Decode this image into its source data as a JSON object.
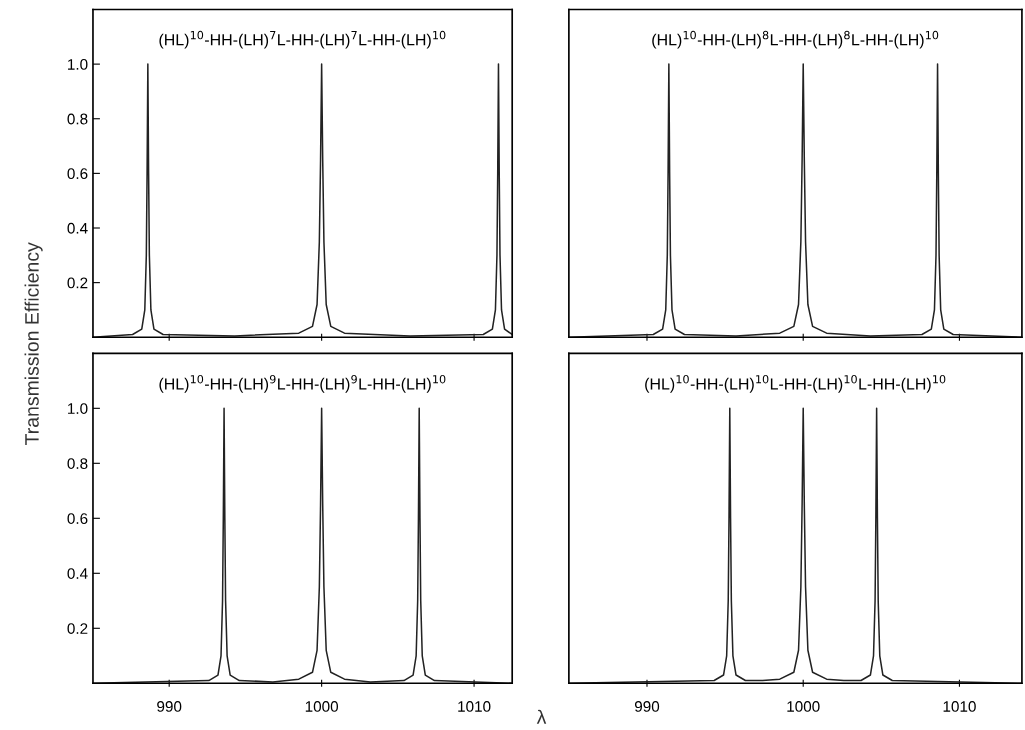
{
  "chart_data": [
    {
      "type": "line",
      "title": "(HL)$^{10}$-HH-(LH)$^{7}$L-HH-(LH)$^{7}$L-HH-(LH)$^{10}$",
      "ylabel": "Transmission Efficiency",
      "xlim": [
        985,
        1012.5
      ],
      "ylim": [
        0,
        1.2
      ],
      "xticks": [
        990,
        1000,
        1010
      ],
      "yticks": [
        0.2,
        0.4,
        0.6,
        0.8,
        {
          "value": 1.0,
          "label": "1.0"
        }
      ],
      "tick_labels": "y",
      "series": [
        {
          "color": "#222222",
          "x": [
            985,
            987.6,
            988.2,
            988.4,
            988.5,
            988.55,
            988.6,
            988.65,
            988.7,
            988.8,
            989.0,
            989.6,
            994.3,
            998.5,
            999.4,
            999.7,
            999.85,
            999.93,
            1000,
            1000.07,
            1000.15,
            1000.3,
            1000.6,
            1001.5,
            1005.8,
            1010.6,
            1011.2,
            1011.4,
            1011.5,
            1011.55,
            1011.6,
            1011.65,
            1011.7,
            1011.8,
            1012.0,
            1012.5
          ],
          "values": [
            0,
            0.01,
            0.03,
            0.1,
            0.3,
            0.6,
            1.0,
            0.6,
            0.3,
            0.1,
            0.03,
            0.01,
            0.005,
            0.015,
            0.04,
            0.12,
            0.35,
            0.65,
            1.0,
            0.65,
            0.35,
            0.12,
            0.04,
            0.015,
            0.005,
            0.01,
            0.03,
            0.1,
            0.3,
            0.6,
            1.0,
            0.6,
            0.3,
            0.1,
            0.03,
            0.01
          ]
        }
      ]
    },
    {
      "type": "line",
      "title": "(HL)$^{10}$-HH-(LH)$^{8}$L-HH-(LH)$^{8}$L-HH-(LH)$^{10}$",
      "xlim": [
        985,
        1014
      ],
      "ylim": [
        0,
        1.2
      ],
      "xticks": [
        990,
        1000,
        1010
      ],
      "tick_labels": false,
      "series": [
        {
          "color": "#222222",
          "x": [
            985,
            990.4,
            991.0,
            991.2,
            991.3,
            991.35,
            991.4,
            991.45,
            991.5,
            991.6,
            991.8,
            992.4,
            995.7,
            998.5,
            999.4,
            999.7,
            999.85,
            999.93,
            1000,
            1000.07,
            1000.15,
            1000.3,
            1000.6,
            1001.5,
            1004.3,
            1007.6,
            1008.2,
            1008.4,
            1008.5,
            1008.55,
            1008.6,
            1008.65,
            1008.7,
            1008.8,
            1009.0,
            1009.6,
            1014
          ],
          "values": [
            0,
            0.01,
            0.03,
            0.1,
            0.3,
            0.6,
            1.0,
            0.6,
            0.3,
            0.1,
            0.03,
            0.01,
            0.005,
            0.015,
            0.04,
            0.12,
            0.35,
            0.65,
            1.0,
            0.65,
            0.35,
            0.12,
            0.04,
            0.015,
            0.005,
            0.01,
            0.03,
            0.1,
            0.3,
            0.6,
            1.0,
            0.6,
            0.3,
            0.1,
            0.03,
            0.01,
            0
          ]
        }
      ]
    },
    {
      "type": "line",
      "title": "(HL)$^{10}$-HH-(LH)$^{9}$L-HH-(LH)$^{9}$L-HH-(LH)$^{10}$",
      "xlabel": "λ",
      "xlim": [
        985,
        1012.5
      ],
      "ylim": [
        0,
        1.2
      ],
      "xticks": [
        990,
        1000,
        1010
      ],
      "yticks": [
        0.2,
        0.4,
        0.6,
        0.8,
        {
          "value": 1.0,
          "label": "1.0"
        }
      ],
      "series": [
        {
          "color": "#222222",
          "x": [
            985,
            992.6,
            993.2,
            993.4,
            993.5,
            993.55,
            993.6,
            993.65,
            993.7,
            993.8,
            994.0,
            994.6,
            996.8,
            998.5,
            999.4,
            999.7,
            999.85,
            999.93,
            1000,
            1000.07,
            1000.15,
            1000.3,
            1000.6,
            1001.5,
            1003.2,
            1005.4,
            1006.0,
            1006.2,
            1006.3,
            1006.35,
            1006.4,
            1006.45,
            1006.5,
            1006.6,
            1006.8,
            1007.4,
            1012.5
          ],
          "values": [
            0,
            0.01,
            0.03,
            0.1,
            0.3,
            0.6,
            1.0,
            0.6,
            0.3,
            0.1,
            0.03,
            0.01,
            0.005,
            0.015,
            0.04,
            0.12,
            0.35,
            0.65,
            1.0,
            0.65,
            0.35,
            0.12,
            0.04,
            0.015,
            0.005,
            0.01,
            0.03,
            0.1,
            0.3,
            0.6,
            1.0,
            0.6,
            0.3,
            0.1,
            0.03,
            0.01,
            0
          ]
        }
      ]
    },
    {
      "type": "line",
      "title": "(HL)$^{10}$-HH-(LH)$^{10}$L-HH-(LH)$^{10}$L-HH-(LH)$^{10}$",
      "xlim": [
        985,
        1014
      ],
      "ylim": [
        0,
        1.2
      ],
      "xticks": [
        990,
        1000,
        1010
      ],
      "tick_labels": "x",
      "series": [
        {
          "color": "#222222",
          "x": [
            985,
            994.3,
            994.9,
            995.1,
            995.2,
            995.25,
            995.3,
            995.35,
            995.4,
            995.5,
            995.7,
            996.3,
            997.4,
            998.5,
            999.4,
            999.7,
            999.85,
            999.93,
            1000,
            1000.07,
            1000.15,
            1000.3,
            1000.6,
            1001.5,
            1002.6,
            1003.7,
            1004.3,
            1004.5,
            1004.6,
            1004.65,
            1004.7,
            1004.75,
            1004.8,
            1004.9,
            1005.1,
            1005.7,
            1014
          ],
          "values": [
            0,
            0.01,
            0.03,
            0.1,
            0.3,
            0.6,
            1.0,
            0.6,
            0.3,
            0.1,
            0.03,
            0.01,
            0.01,
            0.015,
            0.04,
            0.12,
            0.35,
            0.65,
            1.0,
            0.65,
            0.35,
            0.12,
            0.04,
            0.015,
            0.01,
            0.01,
            0.03,
            0.1,
            0.3,
            0.6,
            1.0,
            0.6,
            0.3,
            0.1,
            0.03,
            0.01,
            0
          ]
        }
      ]
    }
  ]
}
